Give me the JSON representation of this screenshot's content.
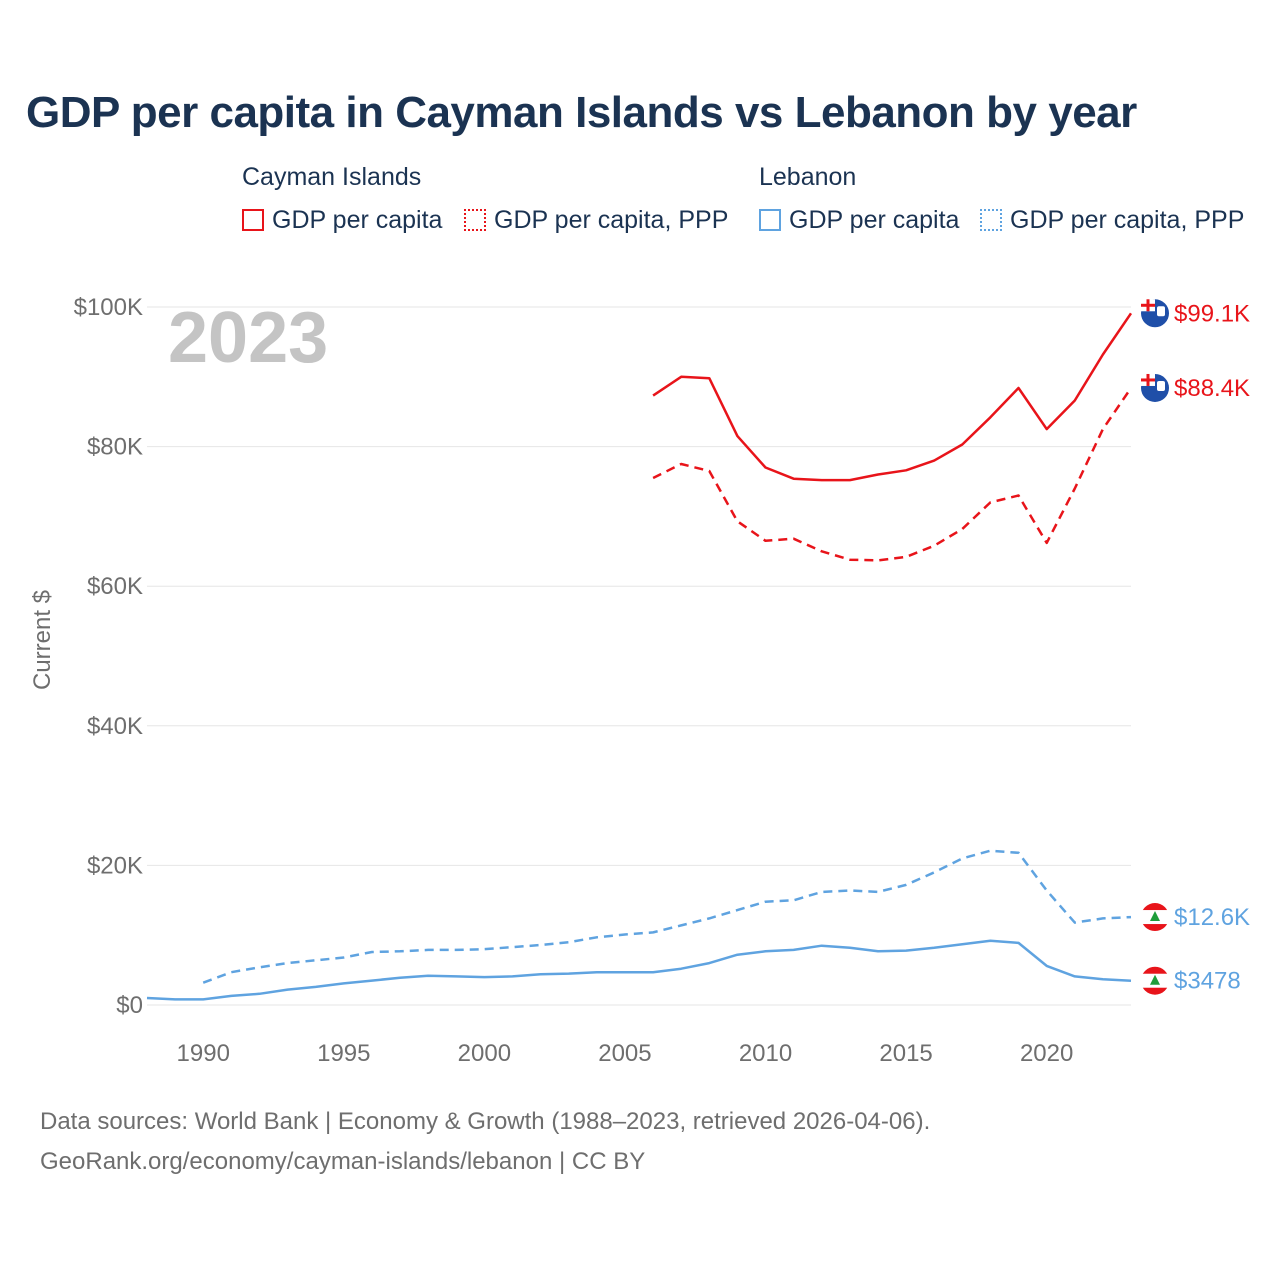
{
  "chart_data": {
    "type": "line",
    "title": "GDP per capita in Cayman Islands vs Lebanon by year",
    "ylabel": "Current $",
    "xlabel": "",
    "xlim": [
      1988,
      2023
    ],
    "ylim": [
      0,
      100000
    ],
    "x_ticks": [
      1990,
      1995,
      2000,
      2005,
      2010,
      2015,
      2020
    ],
    "y_ticks": [
      {
        "value": 0,
        "label": "$0"
      },
      {
        "value": 20000,
        "label": "$20K"
      },
      {
        "value": 40000,
        "label": "$40K"
      },
      {
        "value": 60000,
        "label": "$60K"
      },
      {
        "value": 80000,
        "label": "$80K"
      },
      {
        "value": 100000,
        "label": "$100K"
      }
    ],
    "grid": true,
    "year_watermark": "2023",
    "legend": {
      "groups": [
        {
          "label": "Cayman Islands",
          "items": [
            "GDP per capita",
            "GDP per capita, PPP"
          ]
        },
        {
          "label": "Lebanon",
          "items": [
            "GDP per capita",
            "GDP per capita, PPP"
          ]
        }
      ]
    },
    "series": [
      {
        "name": "Cayman Islands GDP per capita",
        "color": "#e8141a",
        "style": "solid",
        "end_label": "$99.1K",
        "x": [
          2006,
          2007,
          2008,
          2009,
          2010,
          2011,
          2012,
          2013,
          2014,
          2015,
          2016,
          2017,
          2018,
          2019,
          2020,
          2021,
          2022,
          2023
        ],
        "values": [
          87300,
          90000,
          89800,
          81500,
          77000,
          75400,
          75200,
          75200,
          76000,
          76600,
          78000,
          80300,
          84200,
          88400,
          82500,
          86600,
          93200,
          99100
        ]
      },
      {
        "name": "Cayman Islands GDP per capita, PPP",
        "color": "#e8141a",
        "style": "dashed",
        "end_label": "$88.4K",
        "x": [
          2006,
          2007,
          2008,
          2009,
          2010,
          2011,
          2012,
          2013,
          2014,
          2015,
          2016,
          2017,
          2018,
          2019,
          2020,
          2021,
          2022,
          2023
        ],
        "values": [
          75500,
          77500,
          76500,
          69300,
          66500,
          66800,
          65000,
          63800,
          63700,
          64200,
          65800,
          68200,
          72000,
          73000,
          66200,
          74000,
          82500,
          88400
        ]
      },
      {
        "name": "Lebanon GDP per capita",
        "color": "#5fa3e0",
        "style": "solid",
        "end_label": "$3478",
        "x": [
          1988,
          1989,
          1990,
          1991,
          1992,
          1993,
          1994,
          1995,
          1996,
          1997,
          1998,
          1999,
          2000,
          2001,
          2002,
          2003,
          2004,
          2005,
          2006,
          2007,
          2008,
          2009,
          2010,
          2011,
          2012,
          2013,
          2014,
          2015,
          2016,
          2017,
          2018,
          2019,
          2020,
          2021,
          2022,
          2023
        ],
        "values": [
          1000,
          800,
          800,
          1300,
          1600,
          2200,
          2600,
          3100,
          3500,
          3900,
          4200,
          4100,
          4000,
          4100,
          4400,
          4500,
          4700,
          4700,
          4700,
          5200,
          6000,
          7200,
          7700,
          7900,
          8500,
          8200,
          7700,
          7800,
          8200,
          8700,
          9200,
          8900,
          5600,
          4100,
          3700,
          3478
        ]
      },
      {
        "name": "Lebanon GDP per capita, PPP",
        "color": "#5fa3e0",
        "style": "dashed",
        "end_label": "$12.6K",
        "x": [
          1990,
          1991,
          1992,
          1993,
          1994,
          1995,
          1996,
          1997,
          1998,
          1999,
          2000,
          2001,
          2002,
          2003,
          2004,
          2005,
          2006,
          2007,
          2008,
          2009,
          2010,
          2011,
          2012,
          2013,
          2014,
          2015,
          2016,
          2017,
          2018,
          2019,
          2020,
          2021,
          2022,
          2023
        ],
        "values": [
          3200,
          4700,
          5400,
          6000,
          6400,
          6800,
          7600,
          7700,
          7900,
          7900,
          8000,
          8300,
          8600,
          9000,
          9700,
          10100,
          10400,
          11400,
          12400,
          13600,
          14800,
          15000,
          16200,
          16400,
          16200,
          17200,
          19000,
          21000,
          22100,
          21800,
          16400,
          11800,
          12400,
          12600
        ]
      }
    ]
  },
  "legend_text": {
    "group_ky": "Cayman Islands",
    "group_lb": "Lebanon",
    "ky_solid": "GDP per capita",
    "ky_dash": "GDP per capita, PPP",
    "lb_solid": "GDP per capita",
    "lb_dash": "GDP per capita, PPP"
  },
  "footer": {
    "line1": "Data sources: World Bank | Economy & Growth (1988–2023, retrieved 2026-04-06).",
    "line2": "GeoRank.org/economy/cayman-islands/lebanon | CC BY"
  }
}
